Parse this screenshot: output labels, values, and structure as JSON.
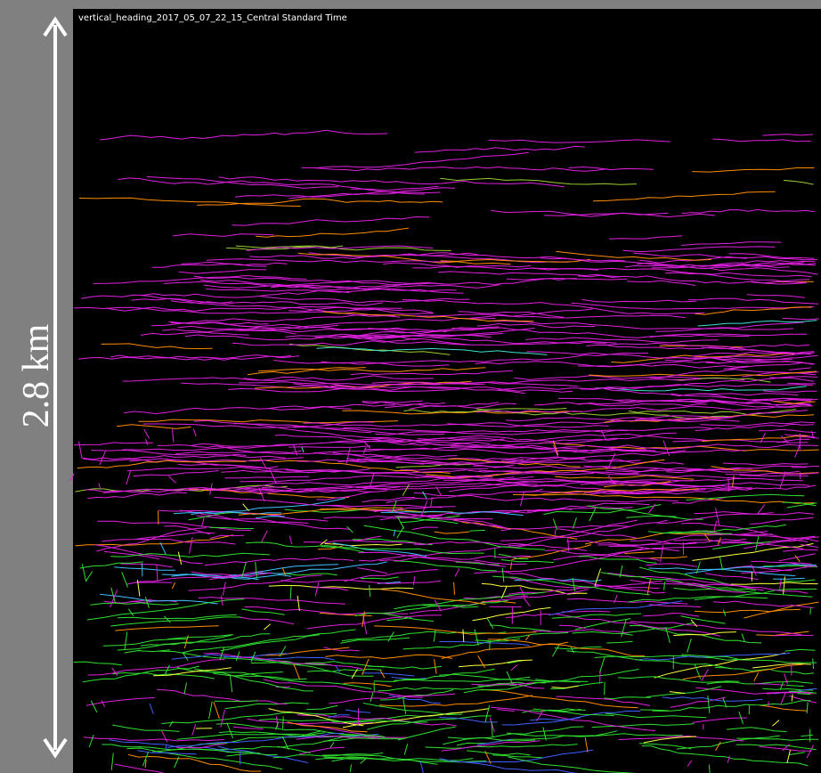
{
  "header": {
    "title": "vertical_heading_2017_05_07_22_15_Central Standard Time"
  },
  "scale": {
    "label": "2.8 km"
  }
}
